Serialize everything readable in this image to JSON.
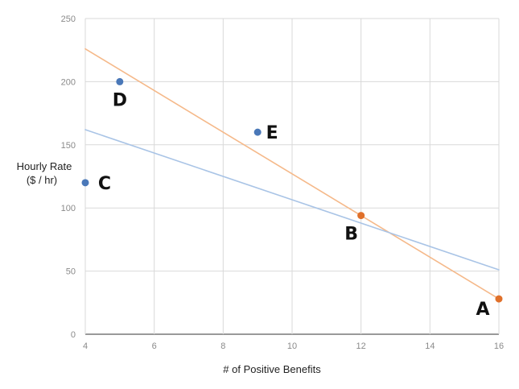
{
  "chart_data": {
    "type": "scatter",
    "xlabel": "# of Positive Benefits",
    "ylabel_lines": [
      "Hourly Rate",
      "($ / hr)"
    ],
    "xlim": [
      4,
      16
    ],
    "ylim": [
      0,
      250
    ],
    "x_ticks": [
      4,
      6,
      8,
      10,
      12,
      14,
      16
    ],
    "y_ticks": [
      0,
      50,
      100,
      150,
      200,
      250
    ],
    "grid": true,
    "points": [
      {
        "label": "A",
        "x": 16,
        "y": 28,
        "color": "#e0702a"
      },
      {
        "label": "B",
        "x": 12,
        "y": 94,
        "color": "#e0702a"
      },
      {
        "label": "C",
        "x": 4,
        "y": 120,
        "color": "#4a78b8"
      },
      {
        "label": "D",
        "x": 5,
        "y": 200,
        "color": "#4a78b8"
      },
      {
        "label": "E",
        "x": 9,
        "y": 160,
        "color": "#4a78b8"
      }
    ],
    "lines": [
      {
        "color": "#f5b98a",
        "x": [
          4,
          16
        ],
        "y": [
          226,
          28
        ]
      },
      {
        "color": "#a9c4e6",
        "x": [
          4,
          16
        ],
        "y": [
          162,
          51
        ]
      }
    ]
  }
}
